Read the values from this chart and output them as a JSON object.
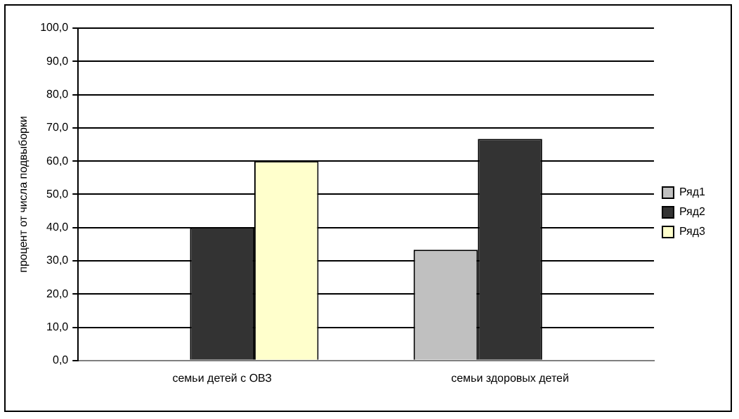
{
  "chart_data": {
    "type": "bar",
    "ylabel": "процент от числа подвыборки",
    "categories": [
      "семьи детей с ОВЗ",
      "семьи здоровых детей"
    ],
    "series": [
      {
        "name": "Ряд1",
        "color": "#c0c0c0",
        "values": [
          null,
          33.3
        ]
      },
      {
        "name": "Ряд2",
        "color": "#333333",
        "values": [
          40,
          66.7
        ]
      },
      {
        "name": "Ряд3",
        "color": "#ffffcc",
        "values": [
          60,
          null
        ]
      }
    ],
    "ylim": [
      0,
      100
    ],
    "yticks": [
      {
        "value": 0,
        "label": "0,0"
      },
      {
        "value": 10,
        "label": "10,0"
      },
      {
        "value": 20,
        "label": "20,0"
      },
      {
        "value": 30,
        "label": "30,0"
      },
      {
        "value": 40,
        "label": "40,0"
      },
      {
        "value": 50,
        "label": "50,0"
      },
      {
        "value": 60,
        "label": "60,0"
      },
      {
        "value": 70,
        "label": "70,0"
      },
      {
        "value": 80,
        "label": "80,0"
      },
      {
        "value": 90,
        "label": "90,0"
      },
      {
        "value": 100,
        "label": "100,0"
      }
    ],
    "grid": "y",
    "legend": "right"
  }
}
